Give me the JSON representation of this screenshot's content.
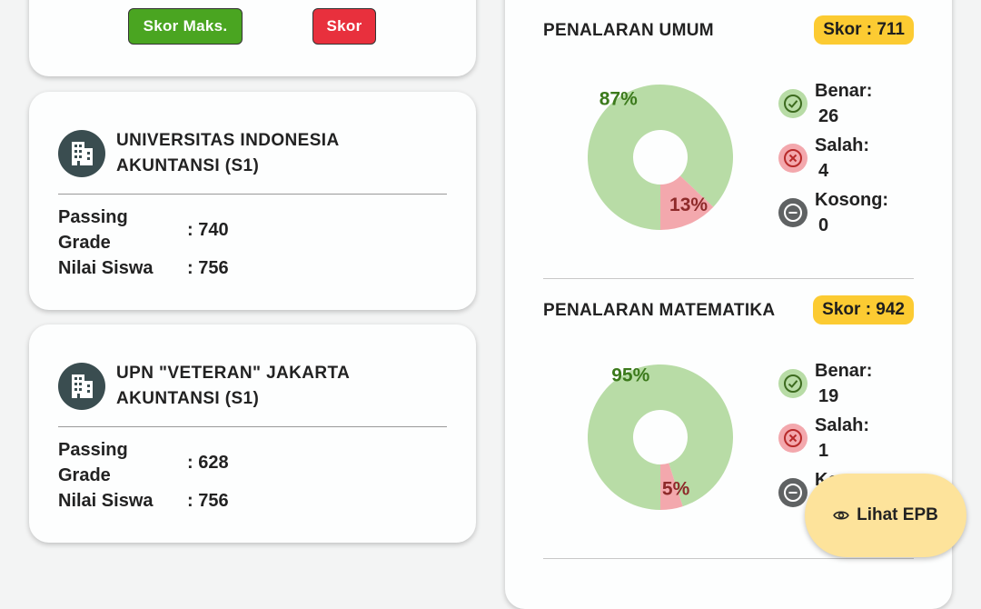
{
  "buttons": {
    "max_label": "Skor Maks.",
    "skor_label": "Skor"
  },
  "universities": [
    {
      "name": "UNIVERSITAS INDONESIA",
      "program": "AKUNTANSI (S1)",
      "passing_label_1": "Passing",
      "passing_label_2": "Grade",
      "passing_value": ": 740",
      "nilai_label": "Nilai Siswa",
      "nilai_value": ": 756"
    },
    {
      "name": "UPN \"VETERAN\" JAKARTA",
      "program": "AKUNTANSI (S1)",
      "passing_label_1": "Passing",
      "passing_label_2": "Grade",
      "passing_value": ": 628",
      "nilai_label": "Nilai Siswa",
      "nilai_value": ": 756"
    }
  ],
  "sections": [
    {
      "title": "PENALARAN UMUM",
      "score": "Skor : 711",
      "correct_pct": 87,
      "wrong_pct": 13,
      "correct_label": "87%",
      "wrong_label": "13%",
      "benar_label": "Benar:",
      "benar_value": "26",
      "salah_label": "Salah:",
      "salah_value": "4",
      "kosong_label": "Kosong:",
      "kosong_value": "0"
    },
    {
      "title": "PENALARAN MATEMATIKA",
      "score": "Skor : 942",
      "correct_pct": 95,
      "wrong_pct": 5,
      "correct_label": "95%",
      "wrong_label": "5%",
      "benar_label": "Benar:",
      "benar_value": "19",
      "salah_label": "Salah:",
      "salah_value": "1",
      "kosong_label": "Ko"
    }
  ],
  "fab": {
    "label": "Lihat EPB",
    "icon": "eye-icon"
  },
  "colors": {
    "correct": "#b8dca6",
    "wrong": "#f3a8ad",
    "correct_text": "#3c7a1c",
    "wrong_text": "#8e2a2a",
    "badge": "#fccb32"
  }
}
